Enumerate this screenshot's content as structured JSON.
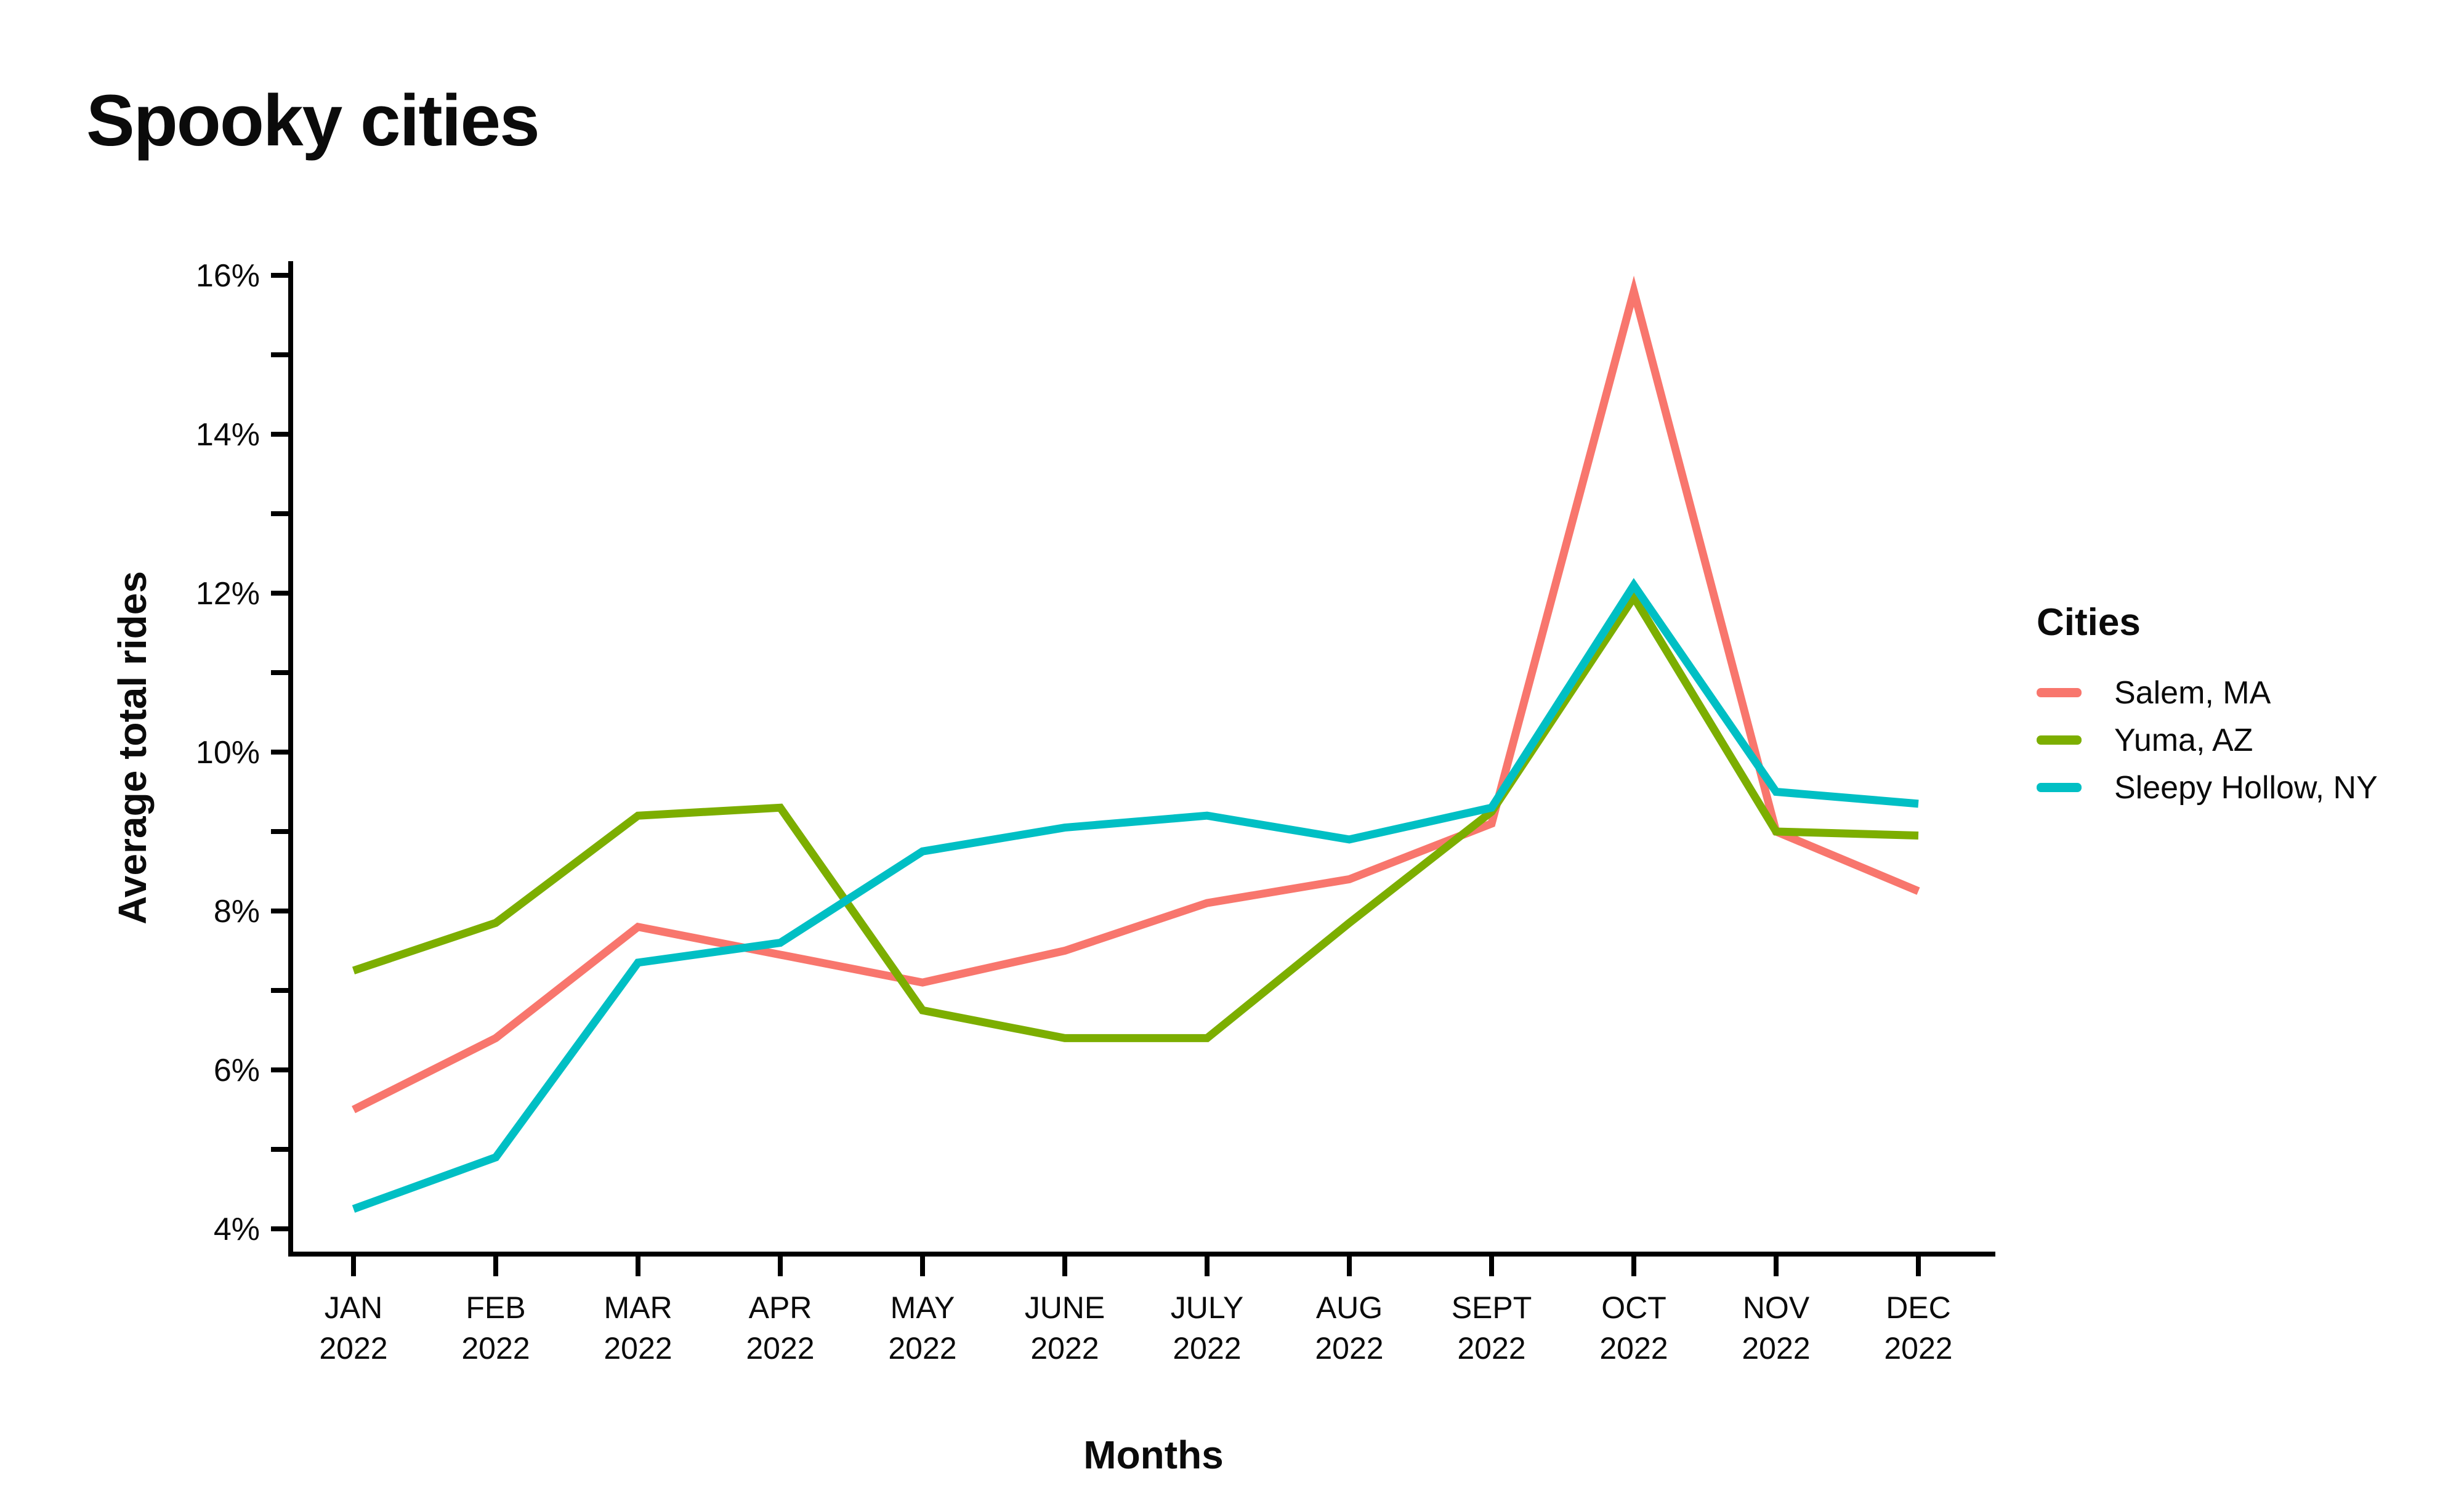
{
  "page_title": "Spooky cities",
  "colors": {
    "text": "#0b0b0b",
    "axis": "#000000",
    "background": "#ffffff"
  },
  "chart_data": {
    "type": "line",
    "title": "Spooky cities",
    "xlabel": "Months",
    "ylabel": "Average total rides",
    "legend_title": "Cities",
    "legend_position": "right",
    "grid": false,
    "categories": [
      "JAN",
      "FEB",
      "MAR",
      "APR",
      "MAY",
      "JUNE",
      "JULY",
      "AUG",
      "SEPT",
      "OCT",
      "NOV",
      "DEC"
    ],
    "category_year": "2022",
    "y_axis": {
      "min": 4,
      "max": 16,
      "tick_step": 1,
      "label_step": 2,
      "unit": "%"
    },
    "series": [
      {
        "name": "Salem, MA",
        "color": "#F8766D",
        "values": [
          5.5,
          6.4,
          7.8,
          7.45,
          7.1,
          7.5,
          8.1,
          8.4,
          9.1,
          15.8,
          9.0,
          8.25
        ]
      },
      {
        "name": "Yuma, AZ",
        "color": "#7CAE00",
        "values": [
          7.25,
          7.85,
          9.2,
          9.3,
          6.75,
          6.4,
          6.4,
          7.85,
          9.25,
          11.95,
          9.0,
          8.95
        ]
      },
      {
        "name": "Sleepy Hollow, NY",
        "color": "#00BFC4",
        "values": [
          4.25,
          4.9,
          7.35,
          7.6,
          8.75,
          9.05,
          9.2,
          8.9,
          9.3,
          12.1,
          9.5,
          9.35
        ]
      }
    ]
  }
}
